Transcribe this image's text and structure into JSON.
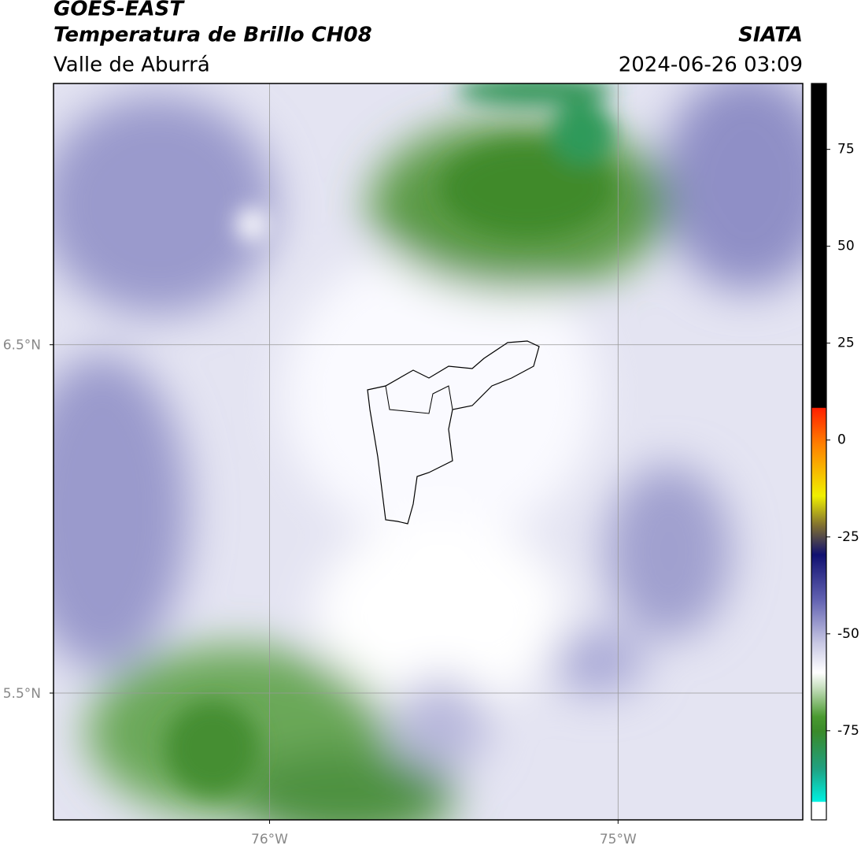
{
  "header": {
    "title": "GOES-EAST",
    "subtitle": "Temperatura de Brillo CH08",
    "region": "Valle de Aburrá",
    "source": "SIATA",
    "datetime": "2024-06-26 03:09"
  },
  "map": {
    "lat_lim": [
      5.136,
      7.25
    ],
    "lon_lim": [
      -76.62,
      -74.47
    ],
    "lat_ticks": [
      {
        "value": 6.5,
        "label": "6.5°N"
      },
      {
        "value": 5.5,
        "label": "5.5°N"
      }
    ],
    "lon_ticks": [
      {
        "value": -76,
        "label": "76°W"
      },
      {
        "value": -75,
        "label": "75°W"
      }
    ],
    "grid": true
  },
  "colorbar": {
    "lim": [
      -98,
      92
    ],
    "ticks": [
      75,
      50,
      25,
      0,
      -25,
      -50,
      -75
    ]
  }
}
